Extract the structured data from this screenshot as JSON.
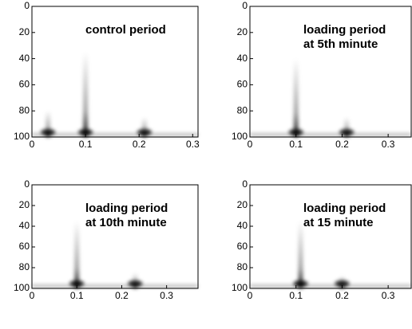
{
  "chart_data": [
    {
      "type": "heatmap",
      "title": [
        "control period"
      ],
      "xlim": [
        0,
        0.31
      ],
      "xticks": [
        0,
        0.1,
        0.2,
        0.3
      ],
      "ylim": [
        0,
        100
      ],
      "yticks": [
        0,
        20,
        40,
        60,
        80,
        100
      ],
      "y_inverted": true,
      "peaks": {
        "x": [
          0.03,
          0.1,
          0.21
        ],
        "top": [
          80,
          35,
          85
        ]
      }
    },
    {
      "type": "heatmap",
      "title": [
        "loading period",
        "at 5th minute"
      ],
      "xlim": [
        0,
        0.35
      ],
      "xticks": [
        0,
        0.1,
        0.2,
        0.3
      ],
      "ylim": [
        0,
        100
      ],
      "yticks": [
        0,
        20,
        40,
        60,
        80,
        100
      ],
      "y_inverted": true,
      "peaks": {
        "x": [
          0.1,
          0.21
        ],
        "top": [
          40,
          85
        ]
      }
    },
    {
      "type": "heatmap",
      "title": [
        "loading period",
        "at 10th minute"
      ],
      "xlim": [
        0,
        0.37
      ],
      "xticks": [
        0,
        0.1,
        0.2,
        0.3
      ],
      "ylim": [
        0,
        100
      ],
      "yticks": [
        0,
        20,
        40,
        60,
        80,
        100
      ],
      "y_inverted": true,
      "peaks": {
        "x": [
          0.1,
          0.23
        ],
        "top": [
          35,
          85
        ]
      }
    },
    {
      "type": "heatmap",
      "title": [
        "loading period",
        "at 15 minute"
      ],
      "xlim": [
        0,
        0.35
      ],
      "xticks": [
        0,
        0.1,
        0.2,
        0.3
      ],
      "ylim": [
        0,
        100
      ],
      "yticks": [
        0,
        20,
        40,
        60,
        80,
        100
      ],
      "y_inverted": true,
      "peaks": {
        "x": [
          0.11,
          0.2
        ],
        "top": [
          35,
          88
        ]
      }
    }
  ]
}
